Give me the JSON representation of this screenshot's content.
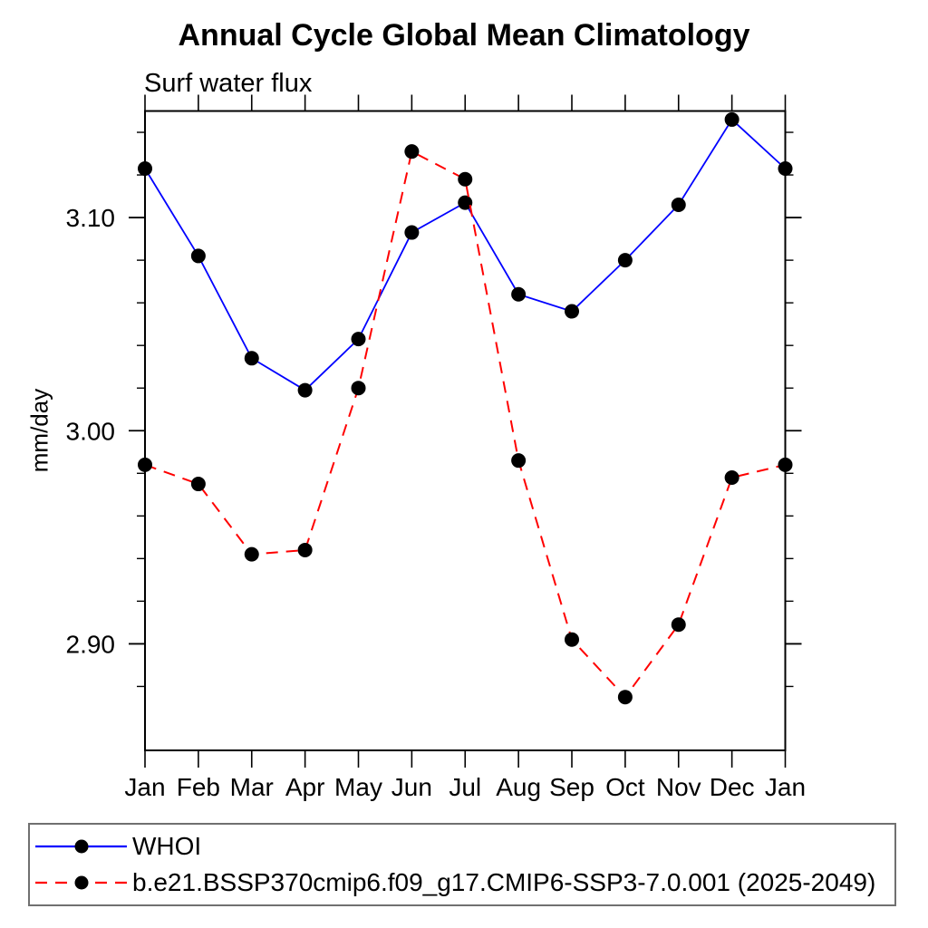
{
  "figure": {
    "background": "#ffffff",
    "axis_color": "#000000",
    "marker_color": "#000000"
  },
  "chart_data": {
    "type": "line",
    "title": "Annual Cycle Global Mean Climatology",
    "subtitle": "Surf water flux",
    "ylabel": "mm/day",
    "xlabel": "",
    "categories": [
      "Jan",
      "Feb",
      "Mar",
      "Apr",
      "May",
      "Jun",
      "Jul",
      "Aug",
      "Sep",
      "Oct",
      "Nov",
      "Dec",
      "Jan"
    ],
    "series": [
      {
        "name": "WHOI",
        "color": "#0000ff",
        "line_style": "solid",
        "marker": "filled-circle",
        "values": [
          3.123,
          3.082,
          3.034,
          3.019,
          3.043,
          3.093,
          3.107,
          3.064,
          3.056,
          3.08,
          3.106,
          3.146,
          3.123
        ]
      },
      {
        "name": "b.e21.BSSP370cmip6.f09_g17.CMIP6-SSP3-7.0.001 (2025-2049)",
        "color": "#ff0000",
        "line_style": "dashed",
        "marker": "filled-circle",
        "values": [
          2.984,
          2.975,
          2.942,
          2.944,
          3.02,
          3.131,
          3.118,
          2.986,
          2.902,
          2.875,
          2.909,
          2.978,
          2.984
        ]
      }
    ],
    "ylim": [
      2.85,
      3.15
    ],
    "yticks_major": [
      2.9,
      3.0,
      3.1
    ],
    "ytick_labels": [
      "2.90",
      "3.00",
      "3.10"
    ],
    "y_minor_step": 0.02,
    "grid": false,
    "legend_position": "bottom-outside"
  }
}
